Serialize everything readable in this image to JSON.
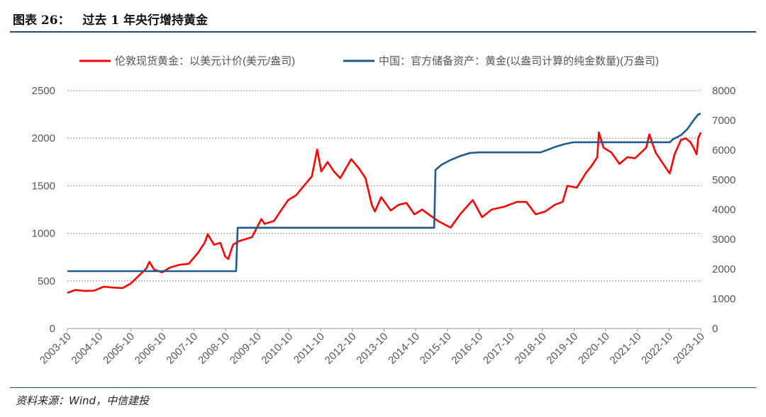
{
  "figure": {
    "title": "图表 26：   过去 1 年央行增持黄金",
    "source": "资料来源：Wind，中信建投"
  },
  "chart_data": {
    "type": "line",
    "legend_position": "top",
    "grid": "horizontal dashed",
    "x_labels": [
      "2003-10",
      "2004-10",
      "2005-10",
      "2006-10",
      "2007-10",
      "2008-10",
      "2009-10",
      "2010-10",
      "2011-10",
      "2012-10",
      "2013-10",
      "2014-10",
      "2015-10",
      "2016-10",
      "2017-10",
      "2018-10",
      "2019-10",
      "2020-10",
      "2021-10",
      "2022-10",
      "2023-10"
    ],
    "xlim": [
      2003.75,
      2023.83
    ],
    "y_left": {
      "ticks": [
        "0",
        "500",
        "1000",
        "1500",
        "2000",
        "2500"
      ],
      "lim": [
        0,
        2500
      ]
    },
    "y_right": {
      "ticks": [
        "0",
        "1000",
        "2000",
        "3000",
        "4000",
        "5000",
        "6000",
        "7000",
        "8000"
      ],
      "lim": [
        0,
        8000
      ]
    },
    "colors": {
      "gold": "#ff0000",
      "reserve": "#1f5c8b",
      "grid": "#777777",
      "rule": "#1f4e79"
    },
    "series": [
      {
        "name": "伦敦现货黄金：以美元计价(美元/盎司)",
        "axis": "left",
        "points": [
          [
            2003.75,
            375
          ],
          [
            2004.0,
            405
          ],
          [
            2004.3,
            395
          ],
          [
            2004.6,
            398
          ],
          [
            2004.9,
            440
          ],
          [
            2005.2,
            430
          ],
          [
            2005.5,
            425
          ],
          [
            2005.75,
            470
          ],
          [
            2006.0,
            550
          ],
          [
            2006.25,
            630
          ],
          [
            2006.35,
            700
          ],
          [
            2006.5,
            620
          ],
          [
            2006.75,
            590
          ],
          [
            2007.0,
            640
          ],
          [
            2007.3,
            670
          ],
          [
            2007.6,
            680
          ],
          [
            2007.9,
            800
          ],
          [
            2008.1,
            900
          ],
          [
            2008.2,
            990
          ],
          [
            2008.4,
            880
          ],
          [
            2008.6,
            900
          ],
          [
            2008.75,
            760
          ],
          [
            2008.85,
            730
          ],
          [
            2009.0,
            880
          ],
          [
            2009.2,
            920
          ],
          [
            2009.4,
            940
          ],
          [
            2009.6,
            960
          ],
          [
            2009.9,
            1150
          ],
          [
            2010.0,
            1100
          ],
          [
            2010.3,
            1130
          ],
          [
            2010.5,
            1230
          ],
          [
            2010.75,
            1350
          ],
          [
            2011.0,
            1400
          ],
          [
            2011.25,
            1500
          ],
          [
            2011.5,
            1600
          ],
          [
            2011.67,
            1880
          ],
          [
            2011.8,
            1650
          ],
          [
            2012.0,
            1750
          ],
          [
            2012.2,
            1650
          ],
          [
            2012.4,
            1580
          ],
          [
            2012.75,
            1780
          ],
          [
            2013.0,
            1680
          ],
          [
            2013.2,
            1580
          ],
          [
            2013.4,
            1300
          ],
          [
            2013.5,
            1230
          ],
          [
            2013.7,
            1380
          ],
          [
            2014.0,
            1240
          ],
          [
            2014.25,
            1300
          ],
          [
            2014.5,
            1320
          ],
          [
            2014.75,
            1200
          ],
          [
            2015.0,
            1250
          ],
          [
            2015.2,
            1200
          ],
          [
            2015.5,
            1130
          ],
          [
            2015.9,
            1060
          ],
          [
            2016.2,
            1200
          ],
          [
            2016.6,
            1350
          ],
          [
            2016.9,
            1170
          ],
          [
            2017.2,
            1250
          ],
          [
            2017.6,
            1280
          ],
          [
            2018.0,
            1330
          ],
          [
            2018.3,
            1330
          ],
          [
            2018.6,
            1200
          ],
          [
            2018.9,
            1230
          ],
          [
            2019.2,
            1300
          ],
          [
            2019.45,
            1330
          ],
          [
            2019.6,
            1500
          ],
          [
            2019.9,
            1480
          ],
          [
            2020.2,
            1640
          ],
          [
            2020.35,
            1700
          ],
          [
            2020.55,
            1800
          ],
          [
            2020.6,
            2060
          ],
          [
            2020.75,
            1900
          ],
          [
            2021.0,
            1850
          ],
          [
            2021.25,
            1730
          ],
          [
            2021.5,
            1800
          ],
          [
            2021.75,
            1790
          ],
          [
            2022.1,
            1900
          ],
          [
            2022.2,
            2040
          ],
          [
            2022.4,
            1850
          ],
          [
            2022.6,
            1750
          ],
          [
            2022.8,
            1650
          ],
          [
            2022.85,
            1630
          ],
          [
            2023.0,
            1830
          ],
          [
            2023.2,
            1980
          ],
          [
            2023.35,
            2000
          ],
          [
            2023.5,
            1960
          ],
          [
            2023.6,
            1900
          ],
          [
            2023.7,
            1830
          ],
          [
            2023.75,
            2000
          ],
          [
            2023.83,
            2060
          ]
        ]
      },
      {
        "name": "中国：官方储备资产：黄金(以盎司计算的纯金数量)(万盎司)",
        "axis": "right",
        "points": [
          [
            2003.75,
            1929
          ],
          [
            2009.1,
            1929
          ],
          [
            2009.15,
            3389
          ],
          [
            2015.38,
            3389
          ],
          [
            2015.42,
            5332
          ],
          [
            2015.6,
            5500
          ],
          [
            2015.9,
            5666
          ],
          [
            2016.2,
            5800
          ],
          [
            2016.5,
            5900
          ],
          [
            2016.8,
            5924
          ],
          [
            2017.0,
            5924
          ],
          [
            2018.75,
            5924
          ],
          [
            2018.95,
            6000
          ],
          [
            2019.2,
            6100
          ],
          [
            2019.5,
            6200
          ],
          [
            2019.8,
            6264
          ],
          [
            2020.0,
            6264
          ],
          [
            2022.85,
            6264
          ],
          [
            2022.95,
            6367
          ],
          [
            2023.2,
            6500
          ],
          [
            2023.4,
            6700
          ],
          [
            2023.6,
            7000
          ],
          [
            2023.75,
            7200
          ],
          [
            2023.83,
            7227
          ]
        ]
      }
    ]
  }
}
